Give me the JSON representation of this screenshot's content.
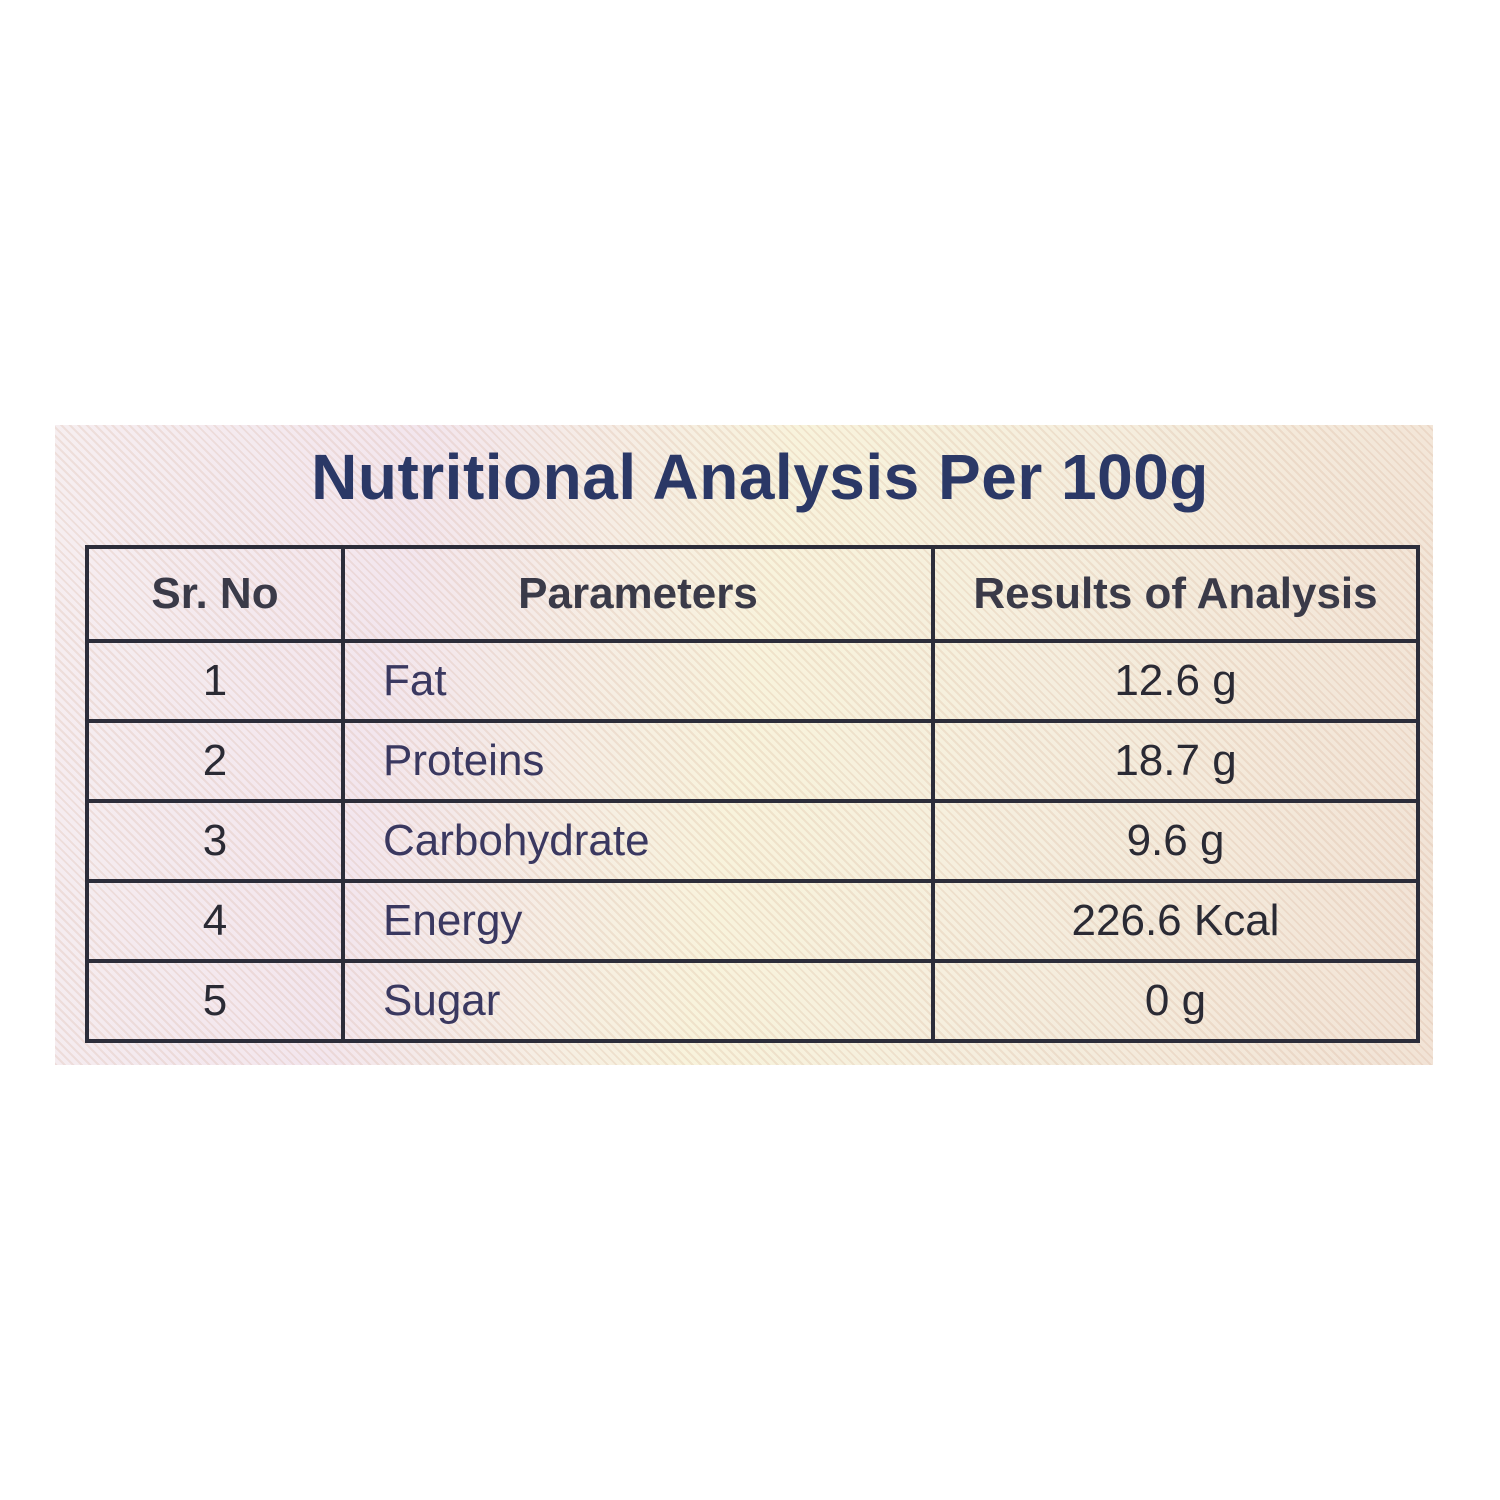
{
  "title": "Nutritional Analysis Per 100g",
  "table": {
    "headers": [
      "Sr. No",
      "Parameters",
      "Results of Analysis"
    ],
    "rows": [
      {
        "sr": "1",
        "parameter": "Fat",
        "result": "12.6 g"
      },
      {
        "sr": "2",
        "parameter": "Proteins",
        "result": "18.7 g"
      },
      {
        "sr": "3",
        "parameter": "Carbohydrate",
        "result": "9.6 g"
      },
      {
        "sr": "4",
        "parameter": "Energy",
        "result": "226.6 Kcal"
      },
      {
        "sr": "5",
        "parameter": "Sugar",
        "result": "0 g"
      }
    ]
  },
  "colors": {
    "title": "#2b3866",
    "border": "#2c2d3a"
  }
}
